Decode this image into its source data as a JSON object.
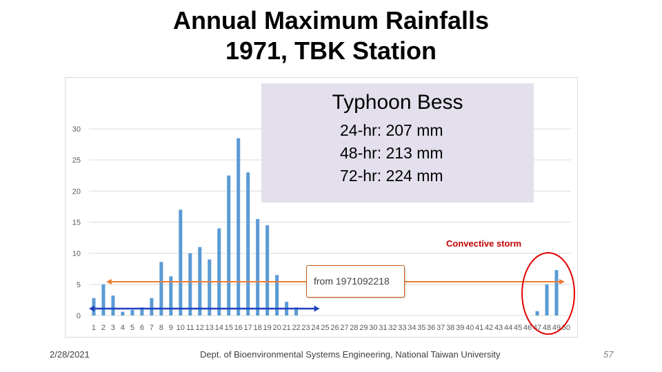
{
  "slide": {
    "title_line1": "Annual Maximum Rainfalls",
    "title_line2": "1971, TBK Station",
    "footer_date": "2/28/2021",
    "footer_dept": "Dept. of Bioenvironmental Systems Engineering, National Taiwan University",
    "page_number": "57"
  },
  "annotations": {
    "typhoon_title": "Typhoon Bess",
    "typhoon_24hr": "24-hr: 207 mm",
    "typhoon_48hr": "48-hr: 213 mm",
    "typhoon_72hr": "72-hr: 224 mm",
    "convective_label": "Convective storm",
    "from_label": "from 1971092218"
  },
  "colors": {
    "bar": "#5b9bd5",
    "grid": "#d9d9d9",
    "axis_text": "#595959",
    "orange_arrow": "#ed7d31",
    "blue_arrow": "#1f3fbf",
    "circle": "#e00000",
    "typhoon_bg": "#e4dfec"
  },
  "chart_data": {
    "type": "bar",
    "title": "",
    "xlabel": "",
    "ylabel": "",
    "ylim": [
      0,
      30
    ],
    "yticks": [
      0,
      5,
      10,
      15,
      20,
      25,
      30
    ],
    "grid": true,
    "categories": [
      "1",
      "2",
      "3",
      "4",
      "5",
      "6",
      "7",
      "8",
      "9",
      "10",
      "11",
      "12",
      "13",
      "14",
      "15",
      "16",
      "17",
      "18",
      "19",
      "20",
      "21",
      "22",
      "23",
      "24",
      "25",
      "26",
      "27",
      "28",
      "29",
      "30",
      "31",
      "32",
      "33",
      "34",
      "35",
      "36",
      "37",
      "38",
      "39",
      "40",
      "41",
      "42",
      "43",
      "44",
      "45",
      "46",
      "47",
      "48",
      "49",
      "50"
    ],
    "values": [
      2.8,
      5,
      3.2,
      0.6,
      0.9,
      1.3,
      2.8,
      8.6,
      6.3,
      17,
      10,
      11,
      9,
      14,
      22.5,
      28.5,
      23,
      15.5,
      14.5,
      6.5,
      2.2,
      1.3,
      0,
      0,
      0,
      0,
      0,
      0,
      0,
      0,
      0,
      0,
      0,
      0,
      0,
      0,
      0,
      0,
      0,
      0,
      0,
      0,
      0,
      0,
      0,
      0,
      0.7,
      5,
      7.3,
      0
    ]
  }
}
